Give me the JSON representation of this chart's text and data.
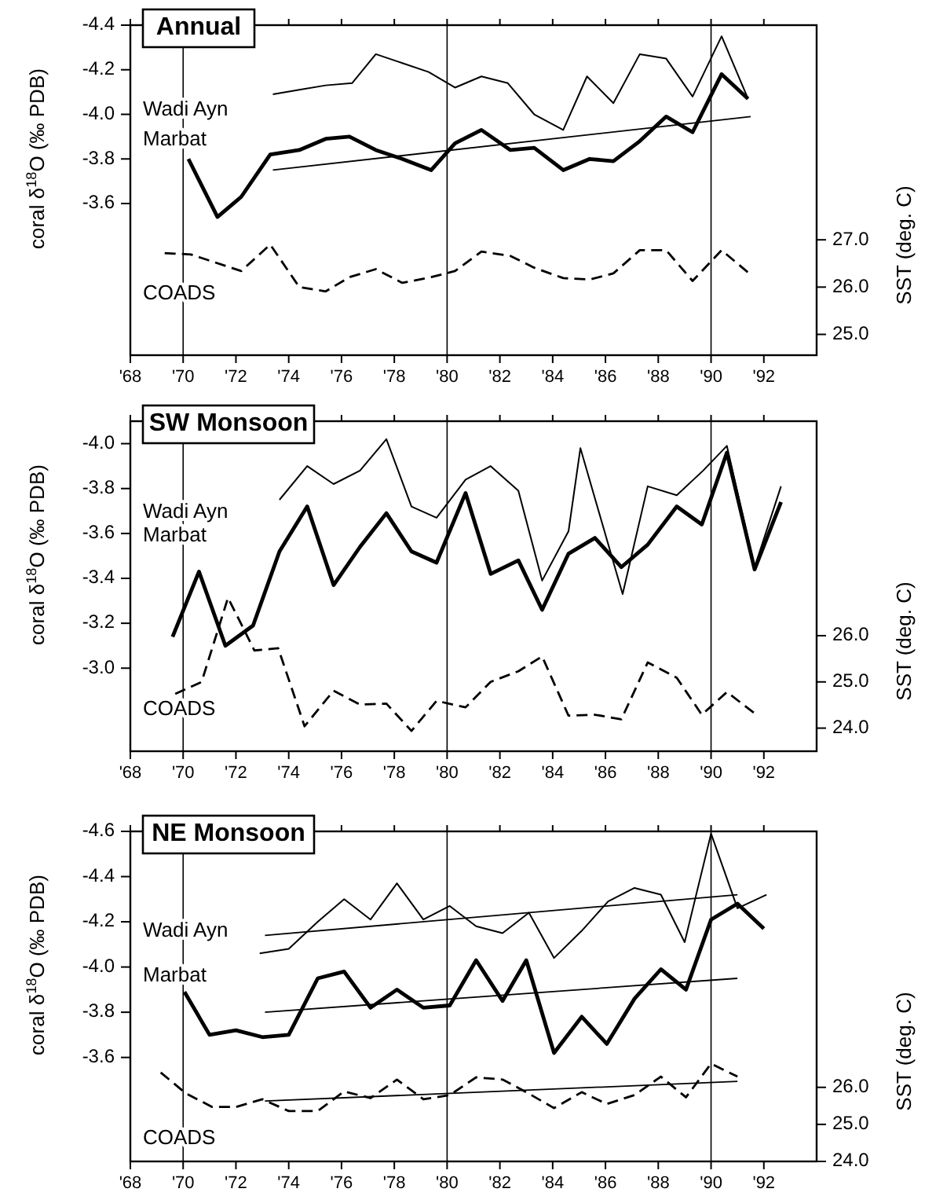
{
  "chart_data": [
    {
      "type": "line",
      "title": "Annual",
      "ylabel": "coral δ$^{18}$O (‰ PDB)",
      "y2label": "SST (deg. C)",
      "grid": false,
      "xlim": [
        1968,
        1994
      ],
      "xticks": [
        {
          "value": 1968,
          "label": "'68"
        },
        {
          "value": 1970,
          "label": "'70"
        },
        {
          "value": 1972,
          "label": "'72"
        },
        {
          "value": 1974,
          "label": "'74"
        },
        {
          "value": 1976,
          "label": "'76"
        },
        {
          "value": 1978,
          "label": "'78"
        },
        {
          "value": 1980,
          "label": "'80"
        },
        {
          "value": 1982,
          "label": "'82"
        },
        {
          "value": 1984,
          "label": "'84"
        },
        {
          "value": 1986,
          "label": "'86"
        },
        {
          "value": 1988,
          "label": "'88"
        },
        {
          "value": 1990,
          "label": "'90"
        },
        {
          "value": 1992,
          "label": "'92"
        }
      ],
      "ylim": [
        -2.92,
        -4.4
      ],
      "yticks": [
        {
          "value": -4.4,
          "label": "-4.4"
        },
        {
          "value": -4.2,
          "label": "-4.2"
        },
        {
          "value": -4.0,
          "label": "-4.0"
        },
        {
          "value": -3.8,
          "label": "-3.8"
        },
        {
          "value": -3.6,
          "label": "-3.6"
        }
      ],
      "y2lim": [
        24.56,
        31.54
      ],
      "y2ticks": [
        {
          "value": 25,
          "label": "25.0"
        },
        {
          "value": 26,
          "label": "26.0"
        },
        {
          "value": 27,
          "label": "27.0"
        }
      ],
      "ref_lines": [
        {
          "axis": "x",
          "value": 1970
        },
        {
          "axis": "x",
          "value": 1980
        },
        {
          "axis": "x",
          "value": 1990
        }
      ],
      "series": [
        {
          "name": "Wadi Ayn",
          "color": "#000000",
          "x": [
            1973.4,
            1974.4,
            1975.4,
            1976.4,
            1977.3,
            1978.3,
            1979.3,
            1980.3,
            1981.3,
            1982.3,
            1983.3,
            1984.4,
            1985.3,
            1986.3,
            1987.3,
            1988.3,
            1989.3,
            1990.4,
            1991.4
          ],
          "values": [
            -4.09,
            -4.11,
            -4.13,
            -4.14,
            -4.27,
            -4.23,
            -4.19,
            -4.12,
            -4.17,
            -4.14,
            -4.0,
            -3.93,
            -4.17,
            -4.05,
            -4.27,
            -4.25,
            -4.08,
            -4.35,
            -4.07
          ]
        },
        {
          "name": "Marbat",
          "color": "#000000",
          "x": [
            1970.2,
            1971.3,
            1972.2,
            1973.3,
            1974.4,
            1975.4,
            1976.3,
            1977.3,
            1978.3,
            1979.4,
            1980.3,
            1981.3,
            1982.4,
            1983.3,
            1984.4,
            1985.4,
            1986.3,
            1987.3,
            1988.3,
            1989.3,
            1990.4,
            1991.4
          ],
          "values": [
            -3.8,
            -3.54,
            -3.63,
            -3.82,
            -3.84,
            -3.89,
            -3.9,
            -3.84,
            -3.8,
            -3.75,
            -3.87,
            -3.93,
            -3.84,
            -3.85,
            -3.75,
            -3.8,
            -3.79,
            -3.88,
            -3.99,
            -3.92,
            -4.18,
            -4.07
          ]
        },
        {
          "name": "COADS",
          "color": "#000000",
          "axis": "y2",
          "line_style": "dashed",
          "x": [
            1969.3,
            1970.3,
            1972.2,
            1973.3,
            1974.4,
            1975.4,
            1976.3,
            1977.3,
            1978.3,
            1979.4,
            1980.3,
            1981.3,
            1982.4,
            1983.3,
            1984.4,
            1985.4,
            1986.3,
            1987.3,
            1988.3,
            1989.3,
            1990.4,
            1991.4
          ],
          "values": [
            26.72,
            26.69,
            26.34,
            26.9,
            26.0,
            25.91,
            26.21,
            26.38,
            26.09,
            26.21,
            26.34,
            26.75,
            26.66,
            26.41,
            26.19,
            26.16,
            26.29,
            26.78,
            26.78,
            26.13,
            26.78,
            26.31
          ]
        },
        {
          "type": "line",
          "color": "#000000",
          "x": [
            1973.4,
            1991.5
          ],
          "values": [
            -3.75,
            -3.99
          ]
        }
      ]
    },
    {
      "type": "line",
      "title": "SW Monsoon",
      "ylabel": "coral δ$^{18}$O (‰ PDB)",
      "y2label": "SST (deg. C)",
      "grid": false,
      "xlim": [
        1968,
        1994
      ],
      "xticks": [
        {
          "value": 1968,
          "label": "'68"
        },
        {
          "value": 1970,
          "label": "'70"
        },
        {
          "value": 1972,
          "label": "'72"
        },
        {
          "value": 1974,
          "label": "'74"
        },
        {
          "value": 1976,
          "label": "'76"
        },
        {
          "value": 1978,
          "label": "'78"
        },
        {
          "value": 1980,
          "label": "'80"
        },
        {
          "value": 1982,
          "label": "'82"
        },
        {
          "value": 1984,
          "label": "'84"
        },
        {
          "value": 1986,
          "label": "'86"
        },
        {
          "value": 1988,
          "label": "'88"
        },
        {
          "value": 1990,
          "label": "'90"
        },
        {
          "value": 1992,
          "label": "'92"
        }
      ],
      "ylim": [
        -2.63,
        -4.1
      ],
      "yticks": [
        {
          "value": -4.0,
          "label": "-4.0"
        },
        {
          "value": -3.8,
          "label": "-3.8"
        },
        {
          "value": -3.6,
          "label": "-3.6"
        },
        {
          "value": -3.4,
          "label": "-3.4"
        },
        {
          "value": -3.2,
          "label": "-3.2"
        },
        {
          "value": -3.0,
          "label": "-3.0"
        }
      ],
      "y2lim": [
        23.5,
        30.64
      ],
      "y2ticks": [
        {
          "value": 24,
          "label": "24.0"
        },
        {
          "value": 25,
          "label": "25.0"
        },
        {
          "value": 26,
          "label": "26.0"
        }
      ],
      "ref_lines": [
        {
          "axis": "x",
          "value": 1970
        },
        {
          "axis": "x",
          "value": 1980
        },
        {
          "axis": "x",
          "value": 1990
        }
      ],
      "series": [
        {
          "name": "Wadi Ayn",
          "color": "#000000",
          "x": [
            1973.65,
            1974.7,
            1975.7,
            1976.7,
            1977.7,
            1978.65,
            1979.6,
            1980.7,
            1981.65,
            1982.7,
            1983.6,
            1984.6,
            1985.05,
            1986.65,
            1987.6,
            1988.7,
            1989.7,
            1990.6,
            1991.65,
            1992.65
          ],
          "values": [
            -3.75,
            -3.9,
            -3.82,
            -3.88,
            -4.02,
            -3.72,
            -3.67,
            -3.84,
            -3.9,
            -3.79,
            -3.39,
            -3.61,
            -3.98,
            -3.33,
            -3.81,
            -3.77,
            -3.88,
            -3.99,
            -3.45,
            -3.81
          ]
        },
        {
          "name": "Marbat",
          "color": "#000000",
          "x": [
            1969.6,
            1970.6,
            1971.6,
            1972.65,
            1973.65,
            1974.7,
            1975.7,
            1976.7,
            1977.7,
            1978.65,
            1979.6,
            1980.7,
            1981.65,
            1982.7,
            1983.6,
            1984.6,
            1985.6,
            1986.6,
            1987.6,
            1988.7,
            1989.65,
            1990.6,
            1991.65,
            1992.65
          ],
          "values": [
            -3.14,
            -3.43,
            -3.1,
            -3.19,
            -3.52,
            -3.72,
            -3.37,
            -3.54,
            -3.69,
            -3.52,
            -3.47,
            -3.78,
            -3.42,
            -3.48,
            -3.26,
            -3.51,
            -3.58,
            -3.45,
            -3.55,
            -3.72,
            -3.64,
            -3.96,
            -3.44,
            -3.74
          ]
        },
        {
          "name": "COADS",
          "color": "#000000",
          "axis": "y2",
          "line_style": "dashed",
          "x": [
            1969.7,
            1970.7,
            1971.7,
            1972.7,
            1973.6,
            1974.6,
            1975.7,
            1976.7,
            1977.7,
            1978.65,
            1979.6,
            1980.7,
            1981.65,
            1982.7,
            1983.6,
            1984.6,
            1985.6,
            1986.6,
            1987.6,
            1988.7,
            1989.65,
            1990.6,
            1991.65
          ],
          "values": [
            24.74,
            25.0,
            26.82,
            25.68,
            25.73,
            24.04,
            24.81,
            24.51,
            24.53,
            23.94,
            24.59,
            24.45,
            25.0,
            25.23,
            25.55,
            24.27,
            24.29,
            24.19,
            25.42,
            25.09,
            24.29,
            24.78,
            24.32
          ]
        }
      ]
    },
    {
      "type": "line",
      "title": "NE Monsoon",
      "ylabel": "coral δ$^{18}$O (‰ PDB)",
      "y2label": "SST (deg. C)",
      "grid": false,
      "xlim": [
        1968,
        1994
      ],
      "xticks": [
        {
          "value": 1968,
          "label": "'68"
        },
        {
          "value": 1970,
          "label": "'70"
        },
        {
          "value": 1972,
          "label": "'72"
        },
        {
          "value": 1974,
          "label": "'74"
        },
        {
          "value": 1976,
          "label": "'76"
        },
        {
          "value": 1978,
          "label": "'78"
        },
        {
          "value": 1980,
          "label": "'80"
        },
        {
          "value": 1982,
          "label": "'82"
        },
        {
          "value": 1984,
          "label": "'84"
        },
        {
          "value": 1986,
          "label": "'86"
        },
        {
          "value": 1988,
          "label": "'88"
        },
        {
          "value": 1990,
          "label": "'90"
        },
        {
          "value": 1992,
          "label": "'92"
        }
      ],
      "ylim": [
        -3.14,
        -4.6
      ],
      "yticks": [
        {
          "value": -4.6,
          "label": "-4.6"
        },
        {
          "value": -4.4,
          "label": "-4.4"
        },
        {
          "value": -4.2,
          "label": "-4.2"
        },
        {
          "value": -4.0,
          "label": "-4.0"
        },
        {
          "value": -3.8,
          "label": "-3.8"
        },
        {
          "value": -3.6,
          "label": "-3.6"
        }
      ],
      "y2lim": [
        24.0,
        32.91
      ],
      "y2ticks": [
        {
          "value": 24,
          "label": "24.0"
        },
        {
          "value": 25,
          "label": "25.0"
        },
        {
          "value": 26,
          "label": "26.0"
        }
      ],
      "ref_lines": [
        {
          "axis": "x",
          "value": 1970
        },
        {
          "axis": "x",
          "value": 1980
        },
        {
          "axis": "x",
          "value": 1990
        }
      ],
      "series": [
        {
          "name": "Wadi Ayn",
          "color": "#000000",
          "x": [
            1972.9,
            1974.0,
            1975.1,
            1976.1,
            1977.1,
            1978.1,
            1979.1,
            1980.1,
            1981.1,
            1982.1,
            1983.1,
            1984.05,
            1985.1,
            1986.1,
            1987.1,
            1988.1,
            1989.0,
            1990.0,
            1991.0,
            1992.1
          ],
          "values": [
            -4.06,
            -4.08,
            -4.2,
            -4.3,
            -4.21,
            -4.37,
            -4.21,
            -4.27,
            -4.18,
            -4.15,
            -4.24,
            -4.04,
            -4.16,
            -4.29,
            -4.35,
            -4.32,
            -4.11,
            -4.59,
            -4.26,
            -4.32
          ]
        },
        {
          "name": "Marbat",
          "color": "#000000",
          "x": [
            1970.05,
            1971.0,
            1972.0,
            1973.0,
            1974.0,
            1975.1,
            1976.1,
            1977.1,
            1978.1,
            1979.1,
            1980.1,
            1981.1,
            1982.1,
            1983.0,
            1984.05,
            1985.1,
            1986.05,
            1987.1,
            1988.1,
            1989.05,
            1990.0,
            1991.0,
            1992.0
          ],
          "values": [
            -3.89,
            -3.7,
            -3.72,
            -3.69,
            -3.7,
            -3.95,
            -3.98,
            -3.82,
            -3.9,
            -3.82,
            -3.83,
            -4.03,
            -3.85,
            -4.03,
            -3.62,
            -3.78,
            -3.66,
            -3.86,
            -3.99,
            -3.9,
            -4.21,
            -4.28,
            -4.17
          ]
        },
        {
          "name": "COADS",
          "color": "#000000",
          "axis": "y2",
          "line_style": "dashed",
          "x": [
            1969.15,
            1970.1,
            1971.1,
            1972.0,
            1973.0,
            1974.0,
            1975.1,
            1976.1,
            1977.1,
            1978.1,
            1979.1,
            1980.1,
            1981.1,
            1982.1,
            1983.0,
            1984.05,
            1985.1,
            1986.05,
            1987.1,
            1988.1,
            1989.05,
            1990.0,
            1991.0
          ],
          "values": [
            26.4,
            25.84,
            25.47,
            25.47,
            25.68,
            25.36,
            25.36,
            25.89,
            25.71,
            26.21,
            25.68,
            25.79,
            26.27,
            26.21,
            25.87,
            25.44,
            25.87,
            25.55,
            25.79,
            26.29,
            25.73,
            26.64,
            26.29
          ]
        },
        {
          "type": "line",
          "color": "#000000",
          "x": [
            1973.1,
            1991.0
          ],
          "values": [
            -4.14,
            -4.32
          ]
        },
        {
          "type": "line",
          "color": "#000000",
          "x": [
            1973.1,
            1991.0
          ],
          "values": [
            -3.8,
            -3.95
          ]
        },
        {
          "type": "line",
          "color": "#000000",
          "axis": "y2",
          "x": [
            1973.1,
            1991.0
          ],
          "values": [
            25.63,
            26.16
          ]
        }
      ]
    }
  ]
}
